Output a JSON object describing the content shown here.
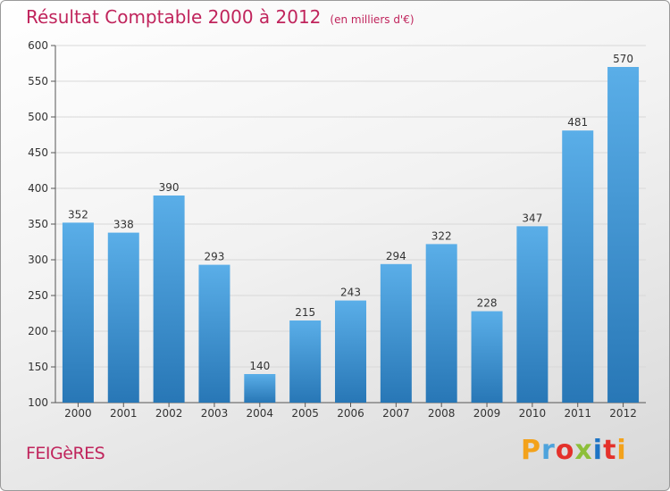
{
  "header": {
    "title": "Résultat Comptable 2000 à 2012",
    "subtitle": "(en milliers d'€)"
  },
  "footer": {
    "commune": "FEIGèRES",
    "logo": "Proxiti",
    "logo_letters": [
      {
        "ch": "P",
        "color": "#f3a21b"
      },
      {
        "ch": "r",
        "color": "#4ea3dc"
      },
      {
        "ch": "o",
        "color": "#e4312b"
      },
      {
        "ch": "x",
        "color": "#8dbf3a"
      },
      {
        "ch": "i",
        "color": "#1e74c5"
      },
      {
        "ch": "t",
        "color": "#e4312b"
      },
      {
        "ch": "i",
        "color": "#f3a21b"
      }
    ]
  },
  "colors": {
    "bar_top": "#5aaee8",
    "bar_bottom": "#2877b6",
    "grid": "#d8d8d8",
    "accent": "#c0245c"
  },
  "chart_data": {
    "type": "bar",
    "title": "Résultat Comptable 2000 à 2012",
    "subtitle": "(en milliers d'€)",
    "categories": [
      "2000",
      "2001",
      "2002",
      "2003",
      "2004",
      "2005",
      "2006",
      "2007",
      "2008",
      "2009",
      "2010",
      "2011",
      "2012"
    ],
    "values": [
      352,
      338,
      390,
      293,
      140,
      215,
      243,
      294,
      322,
      228,
      347,
      481,
      570
    ],
    "ylim": [
      100,
      600
    ],
    "yticks": [
      100,
      150,
      200,
      250,
      300,
      350,
      400,
      450,
      500,
      550,
      600
    ],
    "xlabel": "",
    "ylabel": "",
    "grid": true,
    "legend": "none"
  }
}
